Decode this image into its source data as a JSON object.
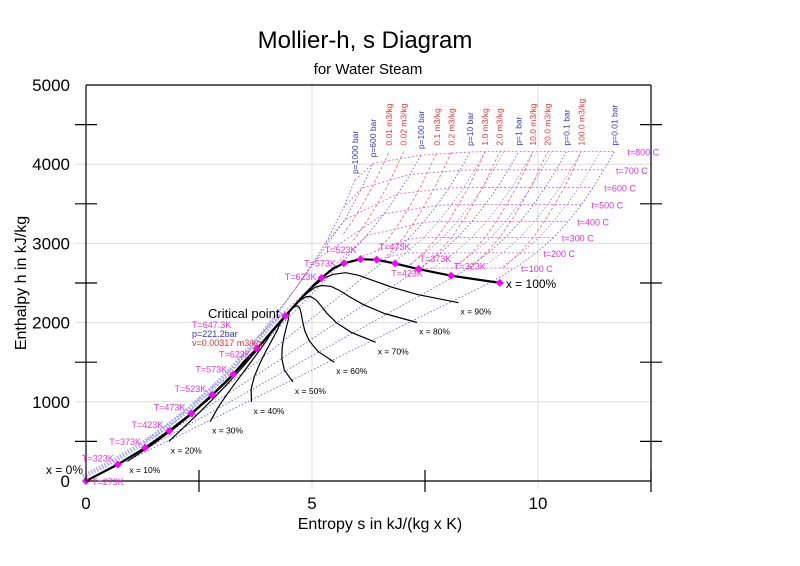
{
  "chart_data": {
    "type": "line",
    "title": "Mollier-h, s Diagram",
    "subtitle": "for Water Steam",
    "xlabel": "Entropy s in kJ/(kg x K)",
    "ylabel": "Enthalpy h in kJ/kg",
    "xlim": [
      0,
      12.5
    ],
    "ylim": [
      0,
      5000
    ],
    "xticks": [
      0,
      5,
      10
    ],
    "xtick_labels": [
      "0",
      "5",
      "10"
    ],
    "yticks": [
      0,
      1000,
      2000,
      3000,
      4000,
      5000
    ],
    "ytick_labels": [
      "0",
      "1000",
      "2000",
      "3000",
      "4000",
      "5000"
    ],
    "grid": true,
    "colors": {
      "saturation": "#000000",
      "marker": "#ff00ff",
      "temperature_label": "#ee33dd",
      "isobar": "#3333cc",
      "isochore": "#ee3333",
      "isotherm": "#dd33dd"
    },
    "saturation": [
      {
        "T": 273,
        "sf": 0.0,
        "hf": 0,
        "sg": 9.156,
        "hg": 2501,
        "label_liquid": "T=273K",
        "label_vapor": ""
      },
      {
        "T": 323,
        "sf": 0.704,
        "hf": 209,
        "sg": 8.076,
        "hg": 2592,
        "label_liquid": "T=323K",
        "label_vapor": "T=323K"
      },
      {
        "T": 373,
        "sf": 1.307,
        "hf": 419,
        "sg": 7.355,
        "hg": 2676,
        "label_liquid": "T=373K",
        "label_vapor": "T=373K"
      },
      {
        "T": 423,
        "sf": 1.842,
        "hf": 632,
        "sg": 6.838,
        "hg": 2746,
        "label_liquid": "T=423K",
        "label_vapor": "T=423K"
      },
      {
        "T": 473,
        "sf": 2.331,
        "hf": 852,
        "sg": 6.431,
        "hg": 2793,
        "label_liquid": "T=473K",
        "label_vapor": "T=473K"
      },
      {
        "T": 523,
        "sf": 2.793,
        "hf": 1086,
        "sg": 6.074,
        "hg": 2801,
        "label_liquid": "T=523K",
        "label_vapor": "T=523K"
      },
      {
        "T": 573,
        "sf": 3.255,
        "hf": 1345,
        "sg": 5.705,
        "hg": 2749,
        "label_liquid": "T=573K",
        "label_vapor": "T=573K"
      },
      {
        "T": 598,
        "sf": 3.49,
        "hf": 1502,
        "sg": 5.47,
        "hg": 2683
      },
      {
        "T": 623,
        "sf": 3.778,
        "hf": 1671,
        "sg": 5.211,
        "hg": 2563,
        "label_liquid": "T=623K",
        "label_vapor": "T=623K"
      },
      {
        "T": 633,
        "sf": 3.92,
        "hf": 1761,
        "sg": 5.05,
        "hg": 2481
      },
      {
        "T": 643,
        "sf": 4.11,
        "hf": 1890,
        "sg": 4.8,
        "hg": 2333
      },
      {
        "T": 647.3,
        "sf": 4.407,
        "hf": 2084,
        "sg": 4.407,
        "hg": 2084
      }
    ],
    "critical_point": {
      "s": 4.407,
      "h": 2084,
      "label": "Critical point",
      "T_label": "T=647.3K",
      "p_label": "p=221.2bar",
      "v_label": "v=0.00317 m3/kg"
    },
    "quality_bounds": {
      "x0_label": "x = 0%",
      "x100_label": "x = 100%"
    },
    "quality_lines": [
      {
        "x": 0.1,
        "label": "x = 10%"
      },
      {
        "x": 0.2,
        "label": "x = 20%"
      },
      {
        "x": 0.3,
        "label": "x = 30%"
      },
      {
        "x": 0.4,
        "label": "x = 40%"
      },
      {
        "x": 0.5,
        "label": "x = 50%"
      },
      {
        "x": 0.6,
        "label": "x = 60%"
      },
      {
        "x": 0.7,
        "label": "x = 70%"
      },
      {
        "x": 0.8,
        "label": "x = 80%"
      },
      {
        "x": 0.9,
        "label": "x = 90%"
      }
    ],
    "isobars": [
      {
        "label": "p=1000 bar",
        "p": 1000,
        "points": [
          [
            100,
            1.28,
            490
          ],
          [
            200,
            2.28,
            920
          ],
          [
            300,
            3.11,
            1350
          ],
          [
            400,
            3.8,
            1820
          ],
          [
            500,
            4.6,
            2400
          ],
          [
            600,
            5.3,
            3000
          ],
          [
            700,
            5.7,
            3450
          ],
          [
            800,
            5.95,
            3800
          ]
        ]
      },
      {
        "label": "p=600 bar",
        "p": 600,
        "points": [
          [
            100,
            1.28,
            460
          ],
          [
            200,
            2.29,
            880
          ],
          [
            300,
            3.14,
            1320
          ],
          [
            400,
            4.0,
            1930
          ],
          [
            500,
            5.1,
            2800
          ],
          [
            600,
            5.73,
            3300
          ],
          [
            700,
            6.1,
            3700
          ],
          [
            800,
            6.35,
            4010
          ]
        ]
      },
      {
        "label": "p=100 bar",
        "p": 100,
        "points": [
          [
            100,
            1.3,
            427
          ],
          [
            200,
            2.32,
            856
          ],
          [
            300,
            3.24,
            1343
          ],
          [
            311,
            3.36,
            1408
          ],
          [
            311,
            5.61,
            2725
          ],
          [
            400,
            6.21,
            3097
          ],
          [
            500,
            6.6,
            3374
          ],
          [
            600,
            6.9,
            3625
          ],
          [
            700,
            7.17,
            3870
          ],
          [
            800,
            7.41,
            4114
          ]
        ]
      },
      {
        "label": "p=10 bar",
        "p": 10,
        "points": [
          [
            100,
            1.3,
            420
          ],
          [
            180,
            2.14,
            763
          ],
          [
            180,
            6.59,
            2777
          ],
          [
            200,
            6.69,
            2828
          ],
          [
            300,
            7.12,
            3051
          ],
          [
            400,
            7.46,
            3264
          ],
          [
            500,
            7.76,
            3479
          ],
          [
            600,
            8.03,
            3698
          ],
          [
            700,
            8.27,
            3923
          ],
          [
            800,
            8.5,
            4154
          ]
        ]
      },
      {
        "label": "p=1 bar",
        "p": 1,
        "points": [
          [
            99.6,
            1.3,
            417
          ],
          [
            99.6,
            7.36,
            2675
          ],
          [
            200,
            7.83,
            2875
          ],
          [
            300,
            8.22,
            3074
          ],
          [
            400,
            8.54,
            3278
          ],
          [
            500,
            8.83,
            3488
          ],
          [
            600,
            9.1,
            3705
          ],
          [
            700,
            9.34,
            3928
          ],
          [
            800,
            9.57,
            4158
          ]
        ]
      },
      {
        "label": "p=0.1 bar",
        "p": 0.1,
        "points": [
          [
            46,
            0.65,
            192
          ],
          [
            46,
            8.15,
            2584
          ],
          [
            100,
            8.45,
            2688
          ],
          [
            200,
            8.9,
            2880
          ],
          [
            300,
            9.28,
            3076
          ],
          [
            400,
            9.61,
            3279
          ],
          [
            500,
            9.9,
            3489
          ],
          [
            600,
            10.16,
            3706
          ],
          [
            700,
            10.4,
            3929
          ],
          [
            800,
            10.63,
            4159
          ]
        ]
      },
      {
        "label": "p=0.01 bar",
        "p": 0.01,
        "points": [
          [
            7,
            0.11,
            29
          ],
          [
            7,
            8.97,
            2513
          ],
          [
            100,
            9.49,
            2688
          ],
          [
            200,
            9.96,
            2880
          ],
          [
            300,
            10.35,
            3076
          ],
          [
            400,
            10.67,
            3279
          ],
          [
            500,
            10.96,
            3489
          ],
          [
            600,
            11.22,
            3706
          ],
          [
            700,
            11.46,
            3929
          ],
          [
            800,
            11.69,
            4159
          ]
        ]
      }
    ],
    "minor_isobars_bar": [
      0.02,
      0.05,
      0.2,
      0.5,
      2,
      5
    ],
    "isochores": [
      {
        "label": "0.01 m3/kg",
        "v": 0.01
      },
      {
        "label": "0.02 m3/kg",
        "v": 0.02
      },
      {
        "label": "0.1 m3/kg",
        "v": 0.1
      },
      {
        "label": "0.2 m3/kg",
        "v": 0.2
      },
      {
        "label": "1.0 m3/kg",
        "v": 1.0
      },
      {
        "label": "2.0 m3/kg",
        "v": 2.0
      },
      {
        "label": "10.0 m3/kg",
        "v": 10.0
      },
      {
        "label": "20.0 m3/kg",
        "v": 20.0
      },
      {
        "label": "100.0 m3/kg",
        "v": 100.0
      }
    ],
    "isotherms": [
      {
        "label": "t=100 C",
        "t": 100
      },
      {
        "label": "t=200 C",
        "t": 200
      },
      {
        "label": "t=300 C",
        "t": 300
      },
      {
        "label": "t=400 C",
        "t": 400
      },
      {
        "label": "t=500 C",
        "t": 500
      },
      {
        "label": "t=600 C",
        "t": 600
      },
      {
        "label": "t=700 C",
        "t": 700
      },
      {
        "label": "t=800 C",
        "t": 800
      }
    ]
  }
}
